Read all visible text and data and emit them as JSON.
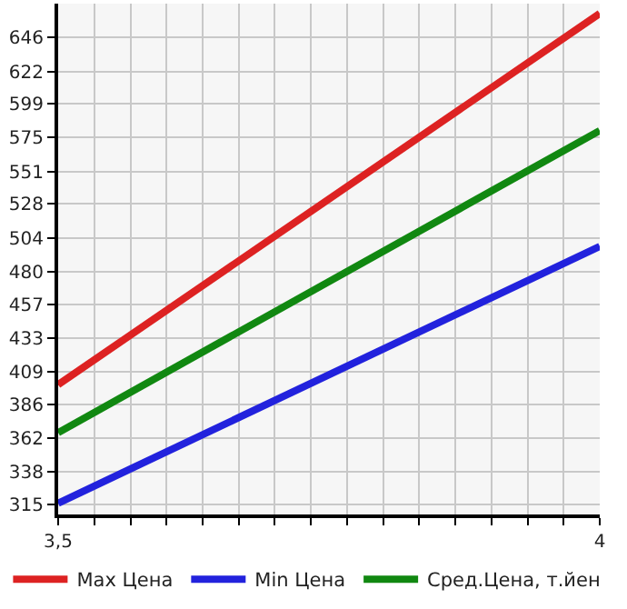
{
  "chart_data": {
    "type": "line",
    "x": [
      3.5,
      4
    ],
    "series": [
      {
        "name": "Max Цена",
        "color": "#dd2222",
        "values": [
          400,
          663
        ]
      },
      {
        "name": "Min Цена",
        "color": "#2222dd",
        "values": [
          316,
          498
        ]
      },
      {
        "name": "Сред.Цена, т.йен",
        "color": "#118811",
        "values": [
          366,
          580
        ]
      }
    ],
    "xlim": [
      3.5,
      4
    ],
    "xticks": [
      {
        "value": 3.5,
        "label": "3,5"
      },
      {
        "value": 3.5333,
        "label": null
      },
      {
        "value": 3.5667,
        "label": null
      },
      {
        "value": 3.6,
        "label": null
      },
      {
        "value": 3.6333,
        "label": null
      },
      {
        "value": 3.6667,
        "label": null
      },
      {
        "value": 3.7,
        "label": null
      },
      {
        "value": 3.7333,
        "label": null
      },
      {
        "value": 3.7667,
        "label": null
      },
      {
        "value": 3.8,
        "label": null
      },
      {
        "value": 3.8333,
        "label": null
      },
      {
        "value": 3.8667,
        "label": null
      },
      {
        "value": 3.9,
        "label": null
      },
      {
        "value": 3.9333,
        "label": null
      },
      {
        "value": 3.9667,
        "label": null
      },
      {
        "value": 4,
        "label": "4"
      }
    ],
    "ylim": [
      308,
      670
    ],
    "yticks": [
      315,
      338,
      362,
      386,
      409,
      433,
      457,
      480,
      504,
      528,
      551,
      575,
      599,
      622,
      646
    ],
    "grid": true,
    "legend": "bottom",
    "marker": "none",
    "line_style": "solid"
  }
}
